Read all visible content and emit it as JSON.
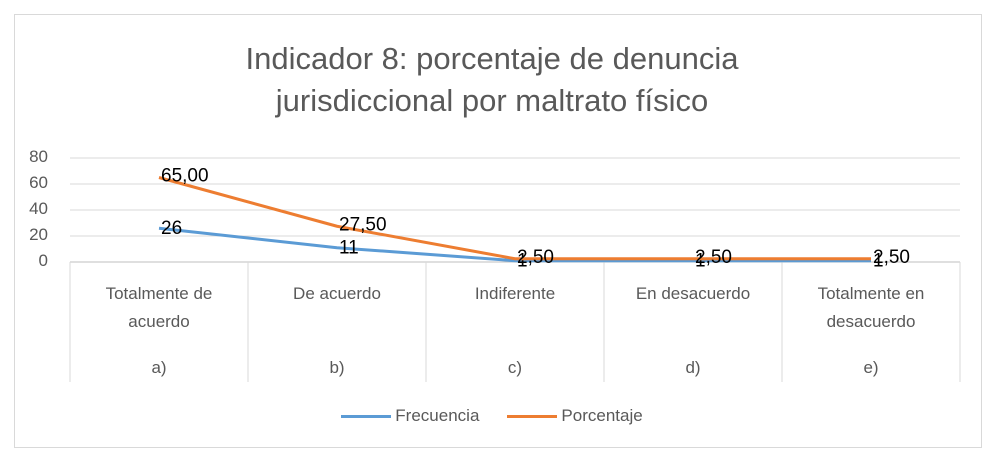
{
  "chart_data": {
    "type": "line",
    "title": "Indicador 8: porcentaje de denuncia jurisdiccional por maltrato físico",
    "categories": [
      "Totalmente de acuerdo",
      "De acuerdo",
      "Indiferente",
      "En desacuerdo",
      "Totalmente en desacuerdo"
    ],
    "category_groups": [
      "a)",
      "b)",
      "c)",
      "d)",
      "e)"
    ],
    "series": [
      {
        "name": "Frecuencia",
        "color": "#5b9bd5",
        "values": [
          26,
          11,
          1,
          1,
          1
        ]
      },
      {
        "name": "Porcentaje",
        "color": "#ed7d31",
        "values": [
          65,
          27.5,
          2.5,
          2.5,
          2.5
        ],
        "value_labels": [
          "65,00",
          "27,50",
          "2,50",
          "2,50",
          "2,50"
        ]
      }
    ],
    "ylim": [
      0,
      80
    ],
    "yticks": [
      0,
      20,
      40,
      60,
      80
    ],
    "grid": true,
    "legend": "bottom"
  }
}
